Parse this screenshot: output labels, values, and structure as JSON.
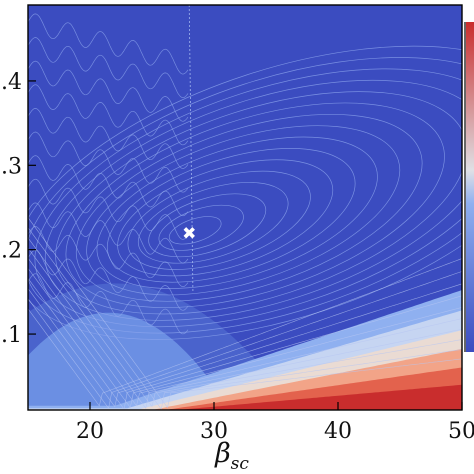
{
  "chart_data": {
    "type": "contour",
    "xlabel": "β",
    "xlabel_subscript": "sc",
    "x_ticks": [
      20,
      30,
      40,
      50
    ],
    "x_tick_labels": [
      "20",
      "30",
      "40",
      "50"
    ],
    "y_ticks": [
      0.1,
      0.2,
      0.3,
      0.4
    ],
    "y_tick_labels": [
      ".1",
      ".2",
      ".3",
      ".4"
    ],
    "xlim": [
      15,
      50
    ],
    "ylim": [
      0.01,
      0.49
    ],
    "colormap": [
      "#3b4cc0",
      "#5673d6",
      "#89a8ee",
      "#c6d5f2",
      "#eadbd3",
      "#f2a488",
      "#e3624d",
      "#c92d2d"
    ],
    "minimum_marker": {
      "x": 28,
      "y": 0.22,
      "symbol": "✖"
    },
    "colorbar": "partially visible on right edge",
    "grid": false,
    "legend": "none"
  }
}
